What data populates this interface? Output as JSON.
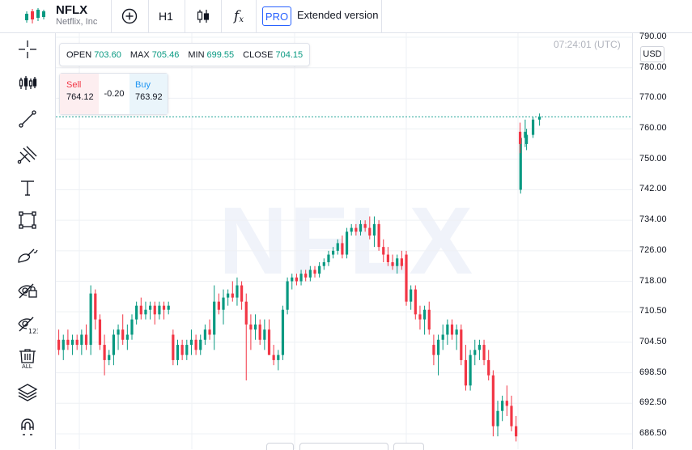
{
  "header": {
    "symbol": "NFLX",
    "company": "Netflix, Inc",
    "interval": "H1",
    "indicators_glyph": "f",
    "indicators_sub": "x",
    "pro_label": "PRO",
    "extended_label": "Extended version"
  },
  "ohlc": {
    "open_label": "OPEN",
    "open": "703.60",
    "max_label": "MAX",
    "max": "705.46",
    "min_label": "MIN",
    "min": "699.55",
    "close_label": "CLOSE",
    "close": "704.15"
  },
  "trade": {
    "sell_label": "Sell",
    "sell": "764.12",
    "spread": "-0.20",
    "buy_label": "Buy",
    "buy": "763.92"
  },
  "chart": {
    "time": "07:24:01 (UTC)",
    "watermark": "NFLX",
    "currency": "USD",
    "up_color": "#089981",
    "down_color": "#f23645",
    "price_line_value": 763.9
  },
  "toolbar_icons": [
    "logo-icon",
    "add-icon",
    "candles-icon",
    "crosshair-icon",
    "bars-icon",
    "trend-line-icon",
    "pitchfork-icon",
    "text-icon",
    "rectangle-icon",
    "brush-icon",
    "hide-drawings-icon",
    "hide-indicators-icon",
    "delete-all-icon",
    "layers-icon",
    "magnet-icon"
  ],
  "chart_data": {
    "type": "candlestick",
    "y_ticks": [
      "790.00",
      "780.00",
      "770.00",
      "760.00",
      "750.00",
      "742.00",
      "734.00",
      "726.00",
      "718.00",
      "710.50",
      "704.50",
      "698.50",
      "692.50",
      "686.50"
    ],
    "candles": [
      [
        705,
        707,
        702,
        703
      ],
      [
        703,
        706,
        701,
        705
      ],
      [
        705,
        707,
        703,
        704
      ],
      [
        704,
        706,
        702,
        705
      ],
      [
        705,
        706,
        703,
        704
      ],
      [
        704,
        707,
        702,
        706
      ],
      [
        706,
        708,
        703,
        704
      ],
      [
        704,
        717,
        702,
        715
      ],
      [
        715,
        716,
        707,
        709
      ],
      [
        709,
        710,
        703,
        704
      ],
      [
        704,
        706,
        698,
        701
      ],
      [
        701,
        703,
        700,
        702
      ],
      [
        702,
        707,
        700,
        706
      ],
      [
        706,
        708,
        703,
        707
      ],
      [
        707,
        710,
        704,
        705
      ],
      [
        705,
        708,
        703,
        706
      ],
      [
        706,
        710,
        705,
        709
      ],
      [
        709,
        713,
        708,
        712
      ],
      [
        712,
        714,
        709,
        710
      ],
      [
        710,
        713,
        709,
        711
      ],
      [
        711,
        713,
        709,
        712
      ],
      [
        712,
        713,
        708,
        710
      ],
      [
        710,
        713,
        709,
        712
      ],
      [
        712,
        713,
        709,
        711
      ],
      [
        711,
        713,
        710,
        712
      ],
      [
        706,
        707,
        700,
        701
      ],
      [
        701,
        705,
        700,
        704
      ],
      [
        704,
        705,
        701,
        702
      ],
      [
        702,
        705,
        701,
        704
      ],
      [
        704,
        707,
        702,
        705
      ],
      [
        705,
        706,
        702,
        703
      ],
      [
        703,
        706,
        702,
        705
      ],
      [
        705,
        708,
        704,
        707
      ],
      [
        707,
        709,
        705,
        706
      ],
      [
        706,
        717,
        703,
        713
      ],
      [
        713,
        715,
        710,
        711
      ],
      [
        711,
        716,
        708,
        714
      ],
      [
        714,
        716,
        712,
        715
      ],
      [
        715,
        718,
        713,
        714
      ],
      [
        714,
        719,
        712,
        717
      ],
      [
        717,
        718,
        711,
        713
      ],
      [
        713,
        715,
        697,
        708
      ],
      [
        708,
        710,
        703,
        707
      ],
      [
        707,
        710,
        705,
        708
      ],
      [
        708,
        709,
        704,
        705
      ],
      [
        705,
        709,
        703,
        707
      ],
      [
        707,
        709,
        702,
        702
      ],
      [
        702,
        704,
        700,
        701
      ],
      [
        701,
        703,
        699,
        702
      ],
      [
        702,
        712,
        701,
        711
      ],
      [
        711,
        719,
        710,
        718
      ],
      [
        718,
        720,
        716,
        719
      ],
      [
        719,
        720,
        717,
        718
      ],
      [
        718,
        721,
        717,
        720
      ],
      [
        720,
        721,
        718,
        719
      ],
      [
        719,
        722,
        718,
        721
      ],
      [
        721,
        722,
        719,
        720
      ],
      [
        720,
        723,
        719,
        722
      ],
      [
        722,
        724,
        721,
        723
      ],
      [
        723,
        726,
        722,
        725
      ],
      [
        725,
        727,
        724,
        726
      ],
      [
        726,
        729,
        725,
        728
      ],
      [
        728,
        730,
        724,
        725
      ],
      [
        725,
        732,
        724,
        731
      ],
      [
        731,
        733,
        730,
        732
      ],
      [
        732,
        733,
        730,
        731
      ],
      [
        731,
        734,
        730,
        733
      ],
      [
        733,
        734,
        731,
        732
      ],
      [
        732,
        735,
        729,
        730
      ],
      [
        730,
        735,
        727,
        733
      ],
      [
        733,
        734,
        726,
        727
      ],
      [
        727,
        729,
        723,
        725
      ],
      [
        725,
        727,
        722,
        723
      ],
      [
        723,
        725,
        721,
        722
      ],
      [
        722,
        725,
        720,
        724
      ],
      [
        724,
        726,
        721,
        722
      ],
      [
        725,
        726,
        712,
        713
      ],
      [
        713,
        717,
        711,
        716
      ],
      [
        716,
        717,
        709,
        710
      ],
      [
        710,
        712,
        707,
        709
      ],
      [
        709,
        712,
        706,
        711
      ],
      [
        711,
        713,
        706,
        707
      ],
      [
        704,
        706,
        700,
        702
      ],
      [
        702,
        706,
        698,
        705
      ],
      [
        705,
        708,
        703,
        706
      ],
      [
        706,
        709,
        704,
        708
      ],
      [
        708,
        709,
        705,
        706
      ],
      [
        706,
        708,
        703,
        707
      ],
      [
        707,
        708,
        700,
        701
      ],
      [
        701,
        704,
        695,
        696
      ],
      [
        696,
        703,
        695,
        702
      ],
      [
        702,
        705,
        700,
        703
      ],
      [
        703,
        705,
        701,
        704
      ],
      [
        704,
        705,
        700,
        701
      ],
      [
        701,
        703,
        697,
        698
      ],
      [
        698,
        699,
        686,
        688
      ],
      [
        688,
        693,
        686,
        691
      ],
      [
        691,
        694,
        689,
        693
      ],
      [
        693,
        696,
        690,
        692
      ],
      [
        692,
        694,
        687,
        688
      ],
      [
        688,
        690,
        685,
        686
      ],
      [
        742,
        759,
        741,
        757
      ],
      [
        757,
        763,
        754,
        759
      ],
      [
        759,
        762,
        752,
        755
      ],
      [
        755,
        760,
        753,
        758
      ],
      [
        758,
        764,
        757,
        763
      ],
      [
        763,
        765,
        761,
        764
      ]
    ],
    "gap_after_index": 102
  }
}
